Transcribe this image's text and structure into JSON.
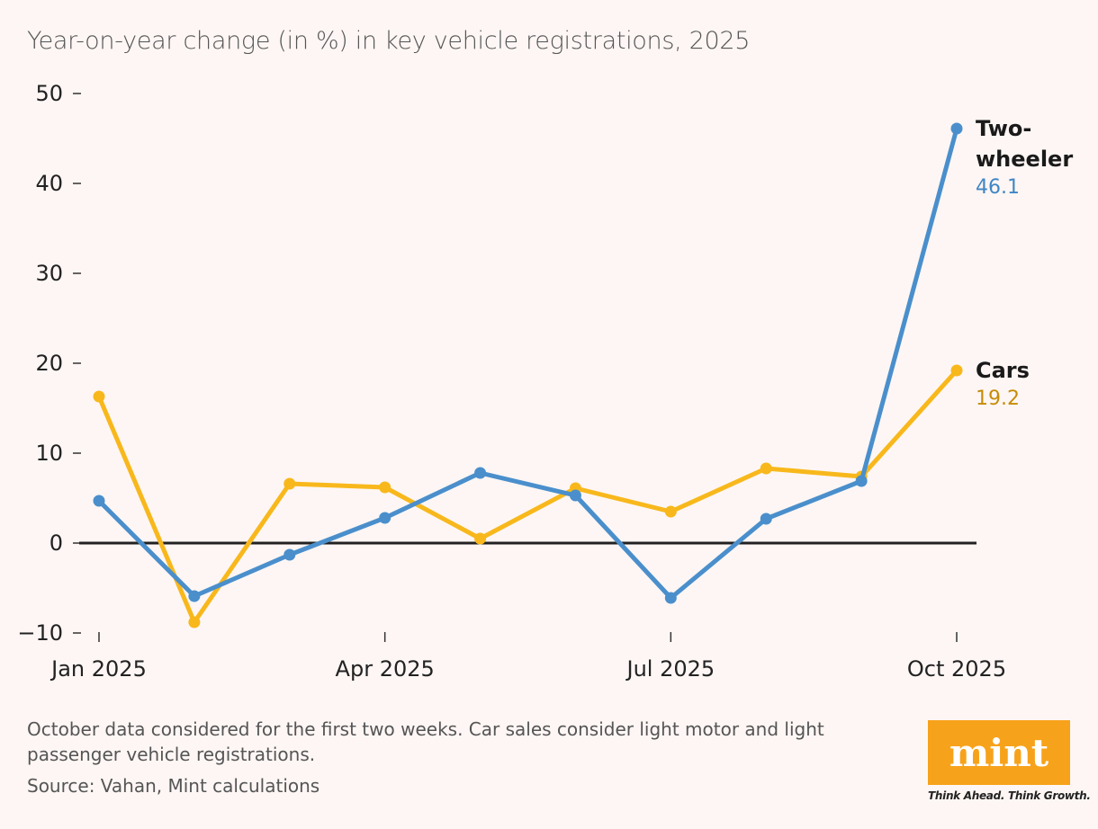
{
  "chart_data": {
    "type": "line",
    "title": "Year-on-year change (in %) in key vehicle registrations, 2025",
    "categories": [
      "Jan 2025",
      null,
      null,
      "Apr 2025",
      null,
      null,
      "Jul 2025",
      null,
      null,
      "Oct 2025"
    ],
    "series": [
      {
        "name": "Two-wheeler",
        "color": "#4a8fcc",
        "value_label_color": "#3f86c6",
        "values": [
          4.7,
          -5.9,
          -1.3,
          2.8,
          7.8,
          5.3,
          -6.1,
          2.7,
          6.9,
          46.1
        ]
      },
      {
        "name": "Cars",
        "color": "#f8b81c",
        "value_label_color": "#c68c08",
        "values": [
          16.3,
          -8.8,
          6.6,
          6.2,
          0.5,
          6.1,
          3.5,
          8.3,
          7.4,
          19.2
        ]
      }
    ],
    "ylim": [
      -10,
      50
    ],
    "yticks": [
      {
        "value": -10,
        "label": "−10"
      },
      0,
      10,
      20,
      30,
      40,
      50
    ],
    "note": "October data considered for the first two weeks. Car sales consider light motor and light passenger vehicle registrations.",
    "source": "Source: Vahan, Mint calculations",
    "logo": "mint",
    "tagline": "Think Ahead. Think Growth."
  }
}
